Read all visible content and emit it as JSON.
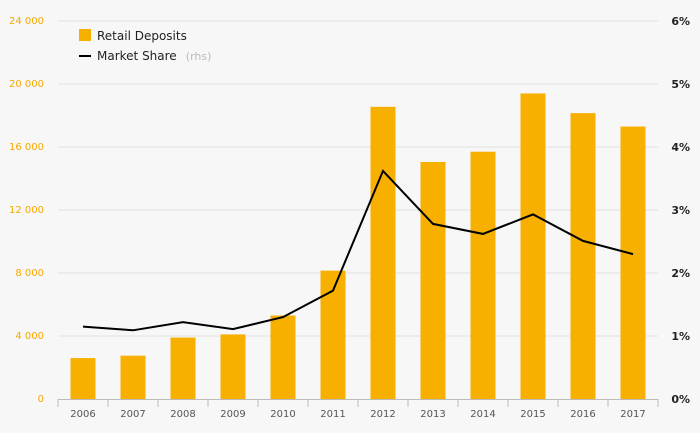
{
  "chart_data": {
    "type": "bar",
    "categories": [
      "2006",
      "2007",
      "2008",
      "2009",
      "2010",
      "2011",
      "2012",
      "2013",
      "2014",
      "2015",
      "2016",
      "2017"
    ],
    "series": [
      {
        "name": "Retail Deposits",
        "type": "bar",
        "axis": "left",
        "color": "#f7b000",
        "values": [
          2600,
          2750,
          3900,
          4100,
          5300,
          8150,
          18550,
          15050,
          15700,
          19400,
          18150,
          17300
        ]
      },
      {
        "name": "Market Share",
        "name_suffix": "(rhs)",
        "type": "line",
        "axis": "right",
        "color": "#000000",
        "values": [
          1.15,
          1.09,
          1.22,
          1.11,
          1.3,
          1.72,
          3.62,
          2.78,
          2.62,
          2.93,
          2.51,
          2.3
        ]
      }
    ],
    "y_left": {
      "ylim": [
        0,
        24000
      ],
      "ticks": [
        "0",
        "4 000",
        "8 000",
        "12 000",
        "16 000",
        "20 000",
        "24 000"
      ],
      "values": [
        0,
        4000,
        8000,
        12000,
        16000,
        20000,
        24000
      ]
    },
    "y_right": {
      "ylim": [
        0,
        6
      ],
      "ticks": [
        "0%",
        "1%",
        "2%",
        "3%",
        "4%",
        "5%",
        "6%"
      ],
      "values": [
        0,
        1,
        2,
        3,
        4,
        5,
        6
      ]
    },
    "grid": true,
    "legend": "top-left"
  }
}
